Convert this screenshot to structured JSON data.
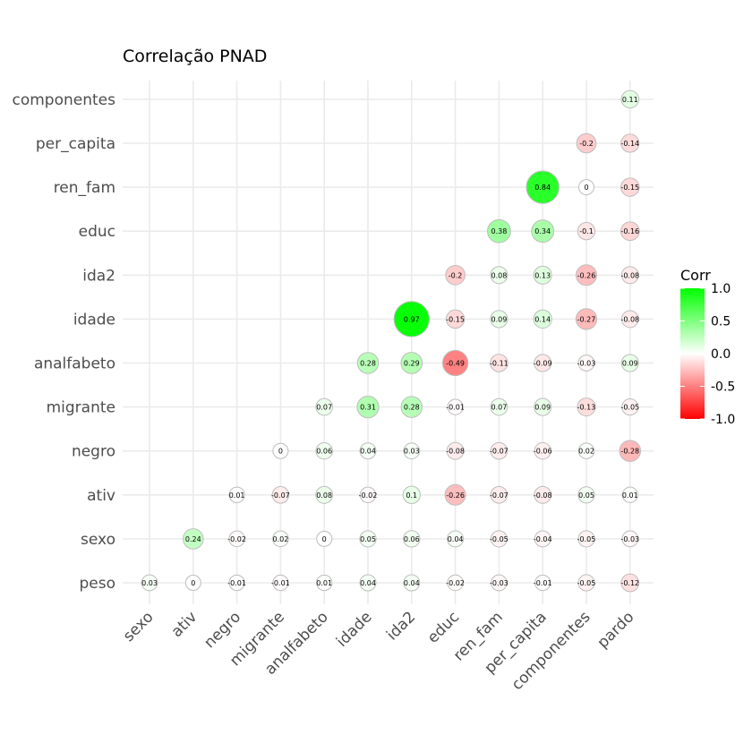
{
  "chart_data": {
    "type": "heatmap",
    "style": "circle-correlation-matrix",
    "title": "Correlação PNAD",
    "xlabel": "",
    "ylabel": "",
    "x_categories": [
      "sexo",
      "ativ",
      "negro",
      "migrante",
      "analfabeto",
      "idade",
      "ida2",
      "educ",
      "ren_fam",
      "per_capita",
      "componentes",
      "pardo"
    ],
    "y_categories": [
      "peso",
      "sexo",
      "ativ",
      "negro",
      "migrante",
      "analfabeto",
      "idade",
      "ida2",
      "educ",
      "ren_fam",
      "per_capita",
      "componentes"
    ],
    "values": [
      {
        "x": "sexo",
        "y": "peso",
        "value": 0.03
      },
      {
        "x": "ativ",
        "y": "peso",
        "value": 0
      },
      {
        "x": "negro",
        "y": "peso",
        "value": -0.01
      },
      {
        "x": "migrante",
        "y": "peso",
        "value": -0.01
      },
      {
        "x": "analfabeto",
        "y": "peso",
        "value": 0.01
      },
      {
        "x": "idade",
        "y": "peso",
        "value": 0.04
      },
      {
        "x": "ida2",
        "y": "peso",
        "value": 0.04
      },
      {
        "x": "educ",
        "y": "peso",
        "value": -0.02
      },
      {
        "x": "ren_fam",
        "y": "peso",
        "value": -0.03
      },
      {
        "x": "per_capita",
        "y": "peso",
        "value": -0.01
      },
      {
        "x": "componentes",
        "y": "peso",
        "value": -0.05
      },
      {
        "x": "pardo",
        "y": "peso",
        "value": -0.12
      },
      {
        "x": "ativ",
        "y": "sexo",
        "value": 0.24
      },
      {
        "x": "negro",
        "y": "sexo",
        "value": -0.02
      },
      {
        "x": "migrante",
        "y": "sexo",
        "value": 0.02
      },
      {
        "x": "analfabeto",
        "y": "sexo",
        "value": 0
      },
      {
        "x": "idade",
        "y": "sexo",
        "value": 0.05
      },
      {
        "x": "ida2",
        "y": "sexo",
        "value": 0.06
      },
      {
        "x": "educ",
        "y": "sexo",
        "value": 0.04
      },
      {
        "x": "ren_fam",
        "y": "sexo",
        "value": -0.05
      },
      {
        "x": "per_capita",
        "y": "sexo",
        "value": -0.04
      },
      {
        "x": "componentes",
        "y": "sexo",
        "value": -0.05
      },
      {
        "x": "pardo",
        "y": "sexo",
        "value": -0.03
      },
      {
        "x": "negro",
        "y": "ativ",
        "value": 0.01
      },
      {
        "x": "migrante",
        "y": "ativ",
        "value": -0.07
      },
      {
        "x": "analfabeto",
        "y": "ativ",
        "value": 0.08
      },
      {
        "x": "idade",
        "y": "ativ",
        "value": -0.02
      },
      {
        "x": "ida2",
        "y": "ativ",
        "value": 0.1
      },
      {
        "x": "educ",
        "y": "ativ",
        "value": -0.26
      },
      {
        "x": "ren_fam",
        "y": "ativ",
        "value": -0.07
      },
      {
        "x": "per_capita",
        "y": "ativ",
        "value": -0.08
      },
      {
        "x": "componentes",
        "y": "ativ",
        "value": 0.05
      },
      {
        "x": "pardo",
        "y": "ativ",
        "value": 0.01
      },
      {
        "x": "migrante",
        "y": "negro",
        "value": 0
      },
      {
        "x": "analfabeto",
        "y": "negro",
        "value": 0.06
      },
      {
        "x": "idade",
        "y": "negro",
        "value": 0.04
      },
      {
        "x": "ida2",
        "y": "negro",
        "value": 0.03
      },
      {
        "x": "educ",
        "y": "negro",
        "value": -0.08
      },
      {
        "x": "ren_fam",
        "y": "negro",
        "value": -0.07
      },
      {
        "x": "per_capita",
        "y": "negro",
        "value": -0.06
      },
      {
        "x": "componentes",
        "y": "negro",
        "value": 0.02
      },
      {
        "x": "pardo",
        "y": "negro",
        "value": -0.28
      },
      {
        "x": "analfabeto",
        "y": "migrante",
        "value": 0.07
      },
      {
        "x": "idade",
        "y": "migrante",
        "value": 0.31
      },
      {
        "x": "ida2",
        "y": "migrante",
        "value": 0.28
      },
      {
        "x": "educ",
        "y": "migrante",
        "value": -0.01
      },
      {
        "x": "ren_fam",
        "y": "migrante",
        "value": 0.07
      },
      {
        "x": "per_capita",
        "y": "migrante",
        "value": 0.09
      },
      {
        "x": "componentes",
        "y": "migrante",
        "value": -0.13
      },
      {
        "x": "pardo",
        "y": "migrante",
        "value": -0.05
      },
      {
        "x": "idade",
        "y": "analfabeto",
        "value": 0.28
      },
      {
        "x": "ida2",
        "y": "analfabeto",
        "value": 0.29
      },
      {
        "x": "educ",
        "y": "analfabeto",
        "value": -0.49
      },
      {
        "x": "ren_fam",
        "y": "analfabeto",
        "value": -0.11
      },
      {
        "x": "per_capita",
        "y": "analfabeto",
        "value": -0.09
      },
      {
        "x": "componentes",
        "y": "analfabeto",
        "value": -0.03
      },
      {
        "x": "pardo",
        "y": "analfabeto",
        "value": 0.09
      },
      {
        "x": "ida2",
        "y": "idade",
        "value": 0.97
      },
      {
        "x": "educ",
        "y": "idade",
        "value": -0.15
      },
      {
        "x": "ren_fam",
        "y": "idade",
        "value": 0.09
      },
      {
        "x": "per_capita",
        "y": "idade",
        "value": 0.14
      },
      {
        "x": "componentes",
        "y": "idade",
        "value": -0.27
      },
      {
        "x": "pardo",
        "y": "idade",
        "value": -0.08
      },
      {
        "x": "educ",
        "y": "ida2",
        "value": -0.2
      },
      {
        "x": "ren_fam",
        "y": "ida2",
        "value": 0.08
      },
      {
        "x": "per_capita",
        "y": "ida2",
        "value": 0.13
      },
      {
        "x": "componentes",
        "y": "ida2",
        "value": -0.26
      },
      {
        "x": "pardo",
        "y": "ida2",
        "value": -0.08
      },
      {
        "x": "ren_fam",
        "y": "educ",
        "value": 0.38
      },
      {
        "x": "per_capita",
        "y": "educ",
        "value": 0.34
      },
      {
        "x": "componentes",
        "y": "educ",
        "value": -0.1
      },
      {
        "x": "pardo",
        "y": "educ",
        "value": -0.16
      },
      {
        "x": "per_capita",
        "y": "ren_fam",
        "value": 0.84
      },
      {
        "x": "componentes",
        "y": "ren_fam",
        "value": 0
      },
      {
        "x": "pardo",
        "y": "ren_fam",
        "value": -0.15
      },
      {
        "x": "componentes",
        "y": "per_capita",
        "value": -0.2
      },
      {
        "x": "pardo",
        "y": "per_capita",
        "value": -0.14
      },
      {
        "x": "pardo",
        "y": "componentes",
        "value": 0.11
      }
    ],
    "value_range": [
      -1,
      1
    ],
    "grid": true,
    "legend": {
      "title": "Corr",
      "placement": "right",
      "ticks": [
        "1.0",
        "0.5",
        "0.0",
        "-0.5",
        "-1.0"
      ],
      "tick_values": [
        1,
        0.5,
        0,
        -0.5,
        -1
      ],
      "colors": {
        "low": "#ff0000",
        "mid": "#ffffff",
        "high": "#00ff00"
      }
    },
    "circle_outline_color": "#bdbdbd"
  }
}
